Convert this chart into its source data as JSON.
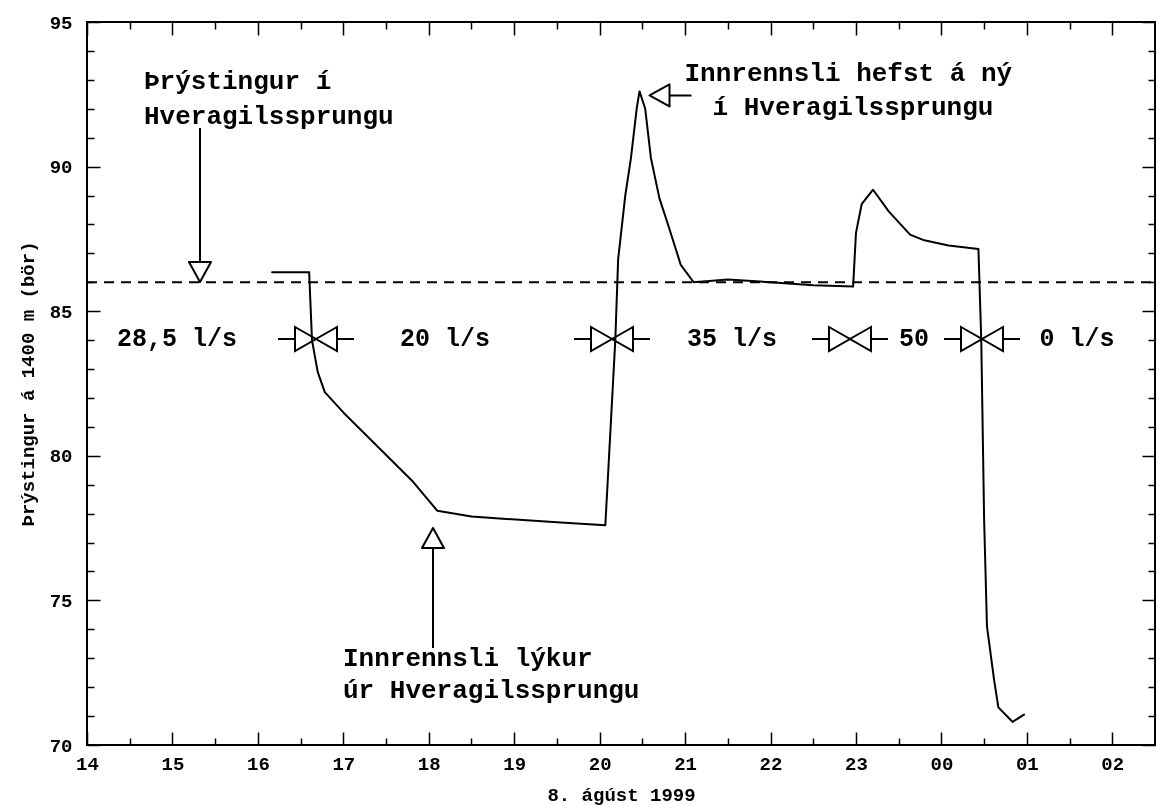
{
  "chart_data": {
    "type": "line",
    "xlabel": "8. ágúst 1999",
    "ylabel": "Þrýstingur á 1400 m (bör)",
    "xlim": [
      "1999-08-08T14:00",
      "1999-08-09T02:30"
    ],
    "ylim": [
      70,
      95
    ],
    "xticks": [
      {
        "value": "1999-08-08T14:00",
        "label": "14"
      },
      {
        "value": "1999-08-08T14:30",
        "label": null
      },
      {
        "value": "1999-08-08T15:00",
        "label": "15"
      },
      {
        "value": "1999-08-08T15:30",
        "label": null
      },
      {
        "value": "1999-08-08T16:00",
        "label": "16"
      },
      {
        "value": "1999-08-08T16:30",
        "label": null
      },
      {
        "value": "1999-08-08T17:00",
        "label": "17"
      },
      {
        "value": "1999-08-08T17:30",
        "label": null
      },
      {
        "value": "1999-08-08T18:00",
        "label": "18"
      },
      {
        "value": "1999-08-08T18:30",
        "label": null
      },
      {
        "value": "1999-08-08T19:00",
        "label": "19"
      },
      {
        "value": "1999-08-08T19:30",
        "label": null
      },
      {
        "value": "1999-08-08T20:00",
        "label": "20"
      },
      {
        "value": "1999-08-08T20:30",
        "label": null
      },
      {
        "value": "1999-08-08T21:00",
        "label": "21"
      },
      {
        "value": "1999-08-08T21:30",
        "label": null
      },
      {
        "value": "1999-08-08T22:00",
        "label": "22"
      },
      {
        "value": "1999-08-08T22:30",
        "label": null
      },
      {
        "value": "1999-08-08T23:00",
        "label": "23"
      },
      {
        "value": "1999-08-08T23:30",
        "label": null
      },
      {
        "value": "1999-08-09T00:00",
        "label": "00"
      },
      {
        "value": "1999-08-09T00:30",
        "label": null
      },
      {
        "value": "1999-08-09T01:00",
        "label": "01"
      },
      {
        "value": "1999-08-09T01:30",
        "label": null
      },
      {
        "value": "1999-08-09T02:00",
        "label": "02"
      }
    ],
    "yticks": [
      70,
      {
        "value": 71,
        "label": null
      },
      {
        "value": 72,
        "label": null
      },
      {
        "value": 73,
        "label": null
      },
      {
        "value": 74,
        "label": null
      },
      75,
      {
        "value": 76,
        "label": null
      },
      {
        "value": 77,
        "label": null
      },
      {
        "value": 78,
        "label": null
      },
      {
        "value": 79,
        "label": null
      },
      80,
      {
        "value": 81,
        "label": null
      },
      {
        "value": 82,
        "label": null
      },
      {
        "value": 83,
        "label": null
      },
      {
        "value": 84,
        "label": null
      },
      85,
      {
        "value": 86,
        "label": null
      },
      {
        "value": 87,
        "label": null
      },
      {
        "value": 88,
        "label": null
      },
      {
        "value": 89,
        "label": null
      },
      90,
      {
        "value": 91,
        "label": null
      },
      {
        "value": 92,
        "label": null
      },
      {
        "value": 93,
        "label": null
      },
      {
        "value": 94,
        "label": null
      },
      95
    ],
    "line_style": "solid",
    "series": [
      {
        "color": "#000000",
        "x": [
          "1999-08-08T16:10",
          "1999-08-08T16:36",
          "1999-08-08T16:38",
          "1999-08-08T16:42",
          "1999-08-08T16:47",
          "1999-08-08T17:00",
          "1999-08-08T17:49",
          "1999-08-08T18:06",
          "1999-08-08T18:30",
          "1999-08-08T19:30",
          "1999-08-08T20:04",
          "1999-08-08T20:11",
          "1999-08-08T20:13",
          "1999-08-08T20:18",
          "1999-08-08T20:22",
          "1999-08-08T20:26",
          "1999-08-08T20:28",
          "1999-08-08T20:32",
          "1999-08-08T20:36",
          "1999-08-08T20:42",
          "1999-08-08T20:48",
          "1999-08-08T20:57",
          "1999-08-08T21:06",
          "1999-08-08T21:30",
          "1999-08-08T22:00",
          "1999-08-08T22:30",
          "1999-08-08T22:58",
          "1999-08-08T23:00",
          "1999-08-08T23:04",
          "1999-08-08T23:12",
          "1999-08-08T23:23",
          "1999-08-08T23:38",
          "1999-08-08T23:48",
          "1999-08-09T00:05",
          "1999-08-09T00:26",
          "1999-08-09T00:28",
          "1999-08-09T00:30",
          "1999-08-09T00:32",
          "1999-08-09T00:37",
          "1999-08-09T00:40",
          "1999-08-09T00:48",
          "1999-08-09T00:50",
          "1999-08-09T00:58"
        ],
        "values": [
          86.35,
          86.35,
          84.0,
          82.9,
          82.2,
          81.5,
          79.1,
          78.1,
          77.9,
          77.7,
          77.6,
          84.0,
          86.8,
          89.0,
          90.3,
          92.0,
          92.6,
          92.0,
          90.3,
          88.9,
          88.0,
          86.6,
          86.0,
          86.1,
          86.0,
          85.9,
          85.85,
          87.7,
          88.7,
          89.2,
          88.45,
          87.65,
          87.45,
          87.27,
          87.15,
          84.0,
          77.8,
          74.1,
          72.25,
          71.3,
          70.9,
          70.8,
          71.05
        ]
      }
    ],
    "ref_lines": [
      {
        "axis": "y",
        "value": 86,
        "line_style": "dashed",
        "color": "#000000"
      }
    ],
    "annotations": [
      "Þrýstingur í Hveragilssprungu",
      "Innrennsli lýkur úr Hveragilssprungu",
      {
        "text": "Innrennsli hefst á ný í Hveragilssprungu",
        "x": "1999-08-08T20:28",
        "y": 92.6
      },
      "28,5 l/s",
      "20 l/s",
      "35 l/s",
      "50",
      "0 l/s"
    ]
  }
}
